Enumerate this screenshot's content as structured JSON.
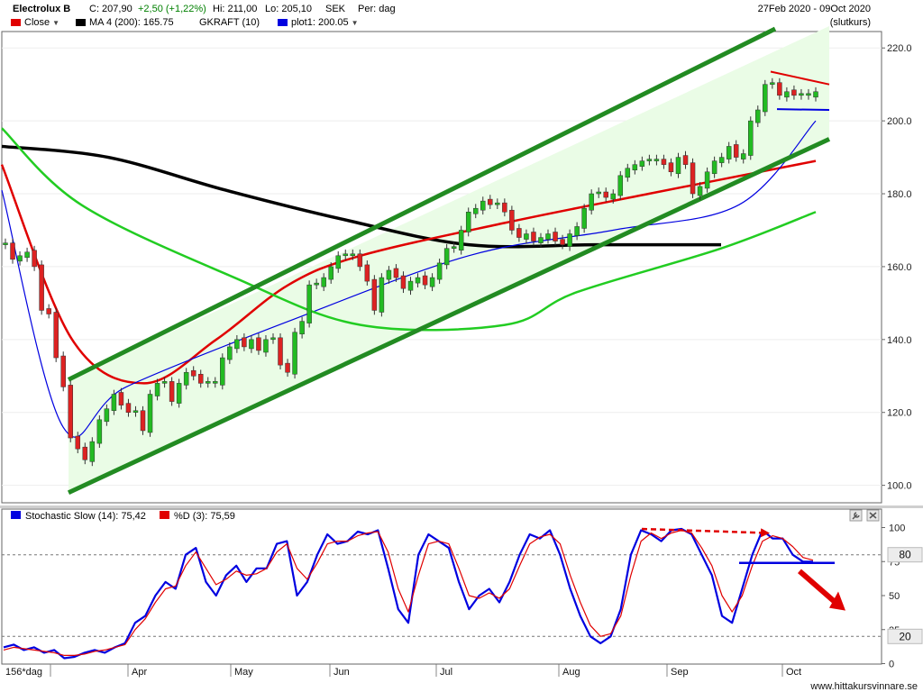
{
  "header": {
    "symbol": "Electrolux B",
    "close": "C: 207,90",
    "change": "+2,50 (+1,22%)",
    "high": "Hi: 211,00",
    "low": "Lo: 205,10",
    "currency": "SEK",
    "period": "Per: dag",
    "daterange": "27Feb 2020 - 09Oct 2020",
    "note": "(slutkurs)"
  },
  "legend": [
    {
      "label": "Close",
      "color": "#e00000"
    },
    {
      "label": "MA 4 (200): 165.75",
      "color": "#000000"
    },
    {
      "label": "GKRAFT (10)",
      "color": null
    },
    {
      "label": "plot1: 200.05",
      "color": "#0000e0"
    }
  ],
  "stoch_legend": [
    {
      "label": "Stochastic Slow (14): 75,42",
      "color": "#0000e0"
    },
    {
      "label": "%D (3): 75,59",
      "color": "#e00000"
    }
  ],
  "footer": {
    "period_label": "156*dag",
    "watermark": "www.hittakursvinnare.se"
  },
  "icons": {
    "wrench": "wrench-icon",
    "close": "close-icon"
  },
  "chart_data": [
    {
      "type": "candlestick",
      "title": "Electrolux B",
      "ylim": [
        95,
        225
      ],
      "y_ticks": [
        "220.0",
        "200.0",
        "180.0",
        "160.0",
        "140.0",
        "120.0",
        "100.0"
      ],
      "x_labels": [
        "Apr",
        "May",
        "Jun",
        "Jul",
        "Aug",
        "Sep",
        "Oct"
      ],
      "close_approx": [
        166,
        162,
        163,
        164,
        160,
        148,
        147,
        135,
        127,
        113,
        110,
        107,
        112,
        118,
        121,
        125,
        122,
        120,
        120,
        115,
        125,
        128,
        128,
        123,
        128,
        131,
        130,
        128,
        128,
        128,
        135,
        138,
        140,
        138,
        140,
        137,
        140,
        140,
        133,
        131,
        142,
        145,
        155,
        155,
        157,
        160,
        163,
        163,
        163,
        160,
        156,
        148,
        157,
        159,
        157,
        154,
        156,
        157,
        155,
        157,
        161,
        165,
        165,
        170,
        175,
        176,
        178,
        177,
        177,
        175,
        170,
        168,
        169,
        167,
        168,
        169,
        167,
        166,
        169,
        171,
        176,
        180,
        180,
        179,
        180,
        185,
        187,
        188,
        189,
        189,
        189,
        188,
        186,
        190,
        188,
        180,
        182,
        186,
        189,
        190,
        193,
        190,
        191,
        200,
        203,
        210,
        210,
        207,
        208,
        207,
        207,
        207,
        208
      ],
      "series": [
        {
          "name": "MA 4 (200)",
          "color": "#000000",
          "values": [
            193,
            190,
            181,
            173,
            166,
            166,
            166
          ]
        },
        {
          "name": "Close",
          "color": "#e00000",
          "values": [
            188,
            140,
            128,
            140,
            155,
            163,
            172,
            180,
            189
          ]
        },
        {
          "name": "plot1",
          "color": "#0000e0",
          "values": [
            181,
            116,
            127,
            145,
            163,
            170,
            177,
            200
          ]
        },
        {
          "name": "green MA",
          "color": "#22cc22",
          "values": [
            198,
            177,
            157,
            144,
            144,
            153,
            165,
            175
          ]
        }
      ],
      "trend_channel": {
        "upper": [
          129,
          226
        ],
        "lower": [
          98,
          195
        ]
      },
      "annotations": [
        "red resistance line near 213",
        "blue support line near 203"
      ]
    },
    {
      "type": "line",
      "title": "Stochastic Slow (14)",
      "ylim": [
        0,
        100
      ],
      "y_ticks": [
        "100",
        "75",
        "50",
        "25",
        "0"
      ],
      "reference_levels": [
        "80",
        "20"
      ],
      "series": [
        {
          "name": "Stochastic Slow (14)",
          "color": "#0000e0",
          "values": [
            12,
            14,
            10,
            12,
            8,
            10,
            4,
            5,
            8,
            10,
            8,
            12,
            15,
            30,
            35,
            50,
            60,
            55,
            80,
            85,
            60,
            50,
            65,
            72,
            60,
            70,
            70,
            88,
            90,
            50,
            60,
            80,
            95,
            88,
            90,
            97,
            95,
            98,
            70,
            40,
            30,
            80,
            95,
            90,
            85,
            60,
            40,
            50,
            55,
            45,
            60,
            80,
            95,
            92,
            98,
            80,
            55,
            35,
            20,
            15,
            20,
            40,
            80,
            98,
            95,
            90,
            98,
            99,
            95,
            80,
            65,
            35,
            30,
            55,
            80,
            98,
            92,
            92,
            80,
            75,
            75
          ]
        },
        {
          "name": "%D (3)",
          "color": "#e00000",
          "values": [
            10,
            12,
            11,
            10,
            9,
            8,
            6,
            6,
            7,
            9,
            10,
            12,
            14,
            25,
            33,
            45,
            55,
            57,
            72,
            82,
            70,
            58,
            62,
            68,
            65,
            66,
            70,
            82,
            88,
            70,
            62,
            74,
            88,
            90,
            90,
            94,
            96,
            97,
            82,
            55,
            38,
            65,
            88,
            90,
            88,
            70,
            50,
            48,
            52,
            48,
            55,
            72,
            88,
            93,
            95,
            88,
            65,
            45,
            28,
            20,
            22,
            35,
            65,
            90,
            96,
            92,
            96,
            98,
            96,
            85,
            72,
            50,
            38,
            50,
            72,
            90,
            94,
            92,
            86,
            78,
            76
          ]
        }
      ],
      "annotations": [
        "red dashed divergence arrow",
        "blue horizontal support line",
        "red downward arrow"
      ]
    }
  ]
}
